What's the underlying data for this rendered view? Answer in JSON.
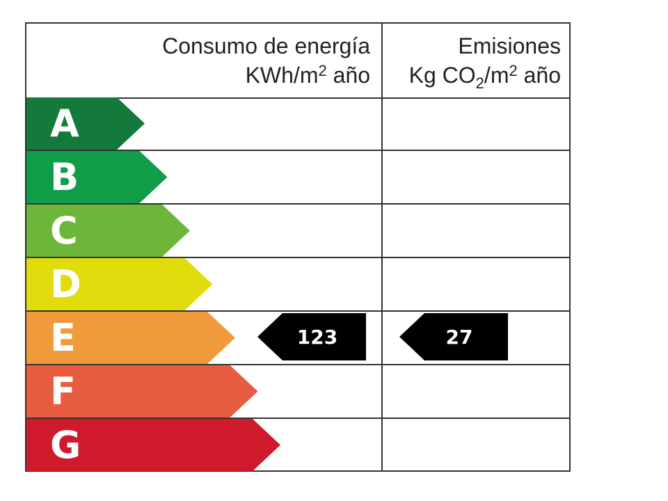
{
  "header": {
    "energy_line1": "Consumo de energía",
    "energy_line2_pre": "KWh/m",
    "energy_line2_sup": "2",
    "energy_line2_post": " año",
    "emissions_line1": "Emisiones",
    "emissions_line2_pre": "Kg CO",
    "emissions_line2_sub": "2",
    "emissions_line2_mid": "/m",
    "emissions_line2_sup": "2",
    "emissions_line2_post": " año"
  },
  "classes": [
    {
      "letter": "A",
      "color": "#137a3c"
    },
    {
      "letter": "B",
      "color": "#0f9d48"
    },
    {
      "letter": "C",
      "color": "#6cb63a"
    },
    {
      "letter": "D",
      "color": "#e3dc0c"
    },
    {
      "letter": "E",
      "color": "#f09b3b"
    },
    {
      "letter": "F",
      "color": "#e85c41"
    },
    {
      "letter": "G",
      "color": "#cf1a2b"
    }
  ],
  "rating": {
    "energy_class": "E",
    "energy_value": "123",
    "emissions_class": "E",
    "emissions_value": "27"
  }
}
